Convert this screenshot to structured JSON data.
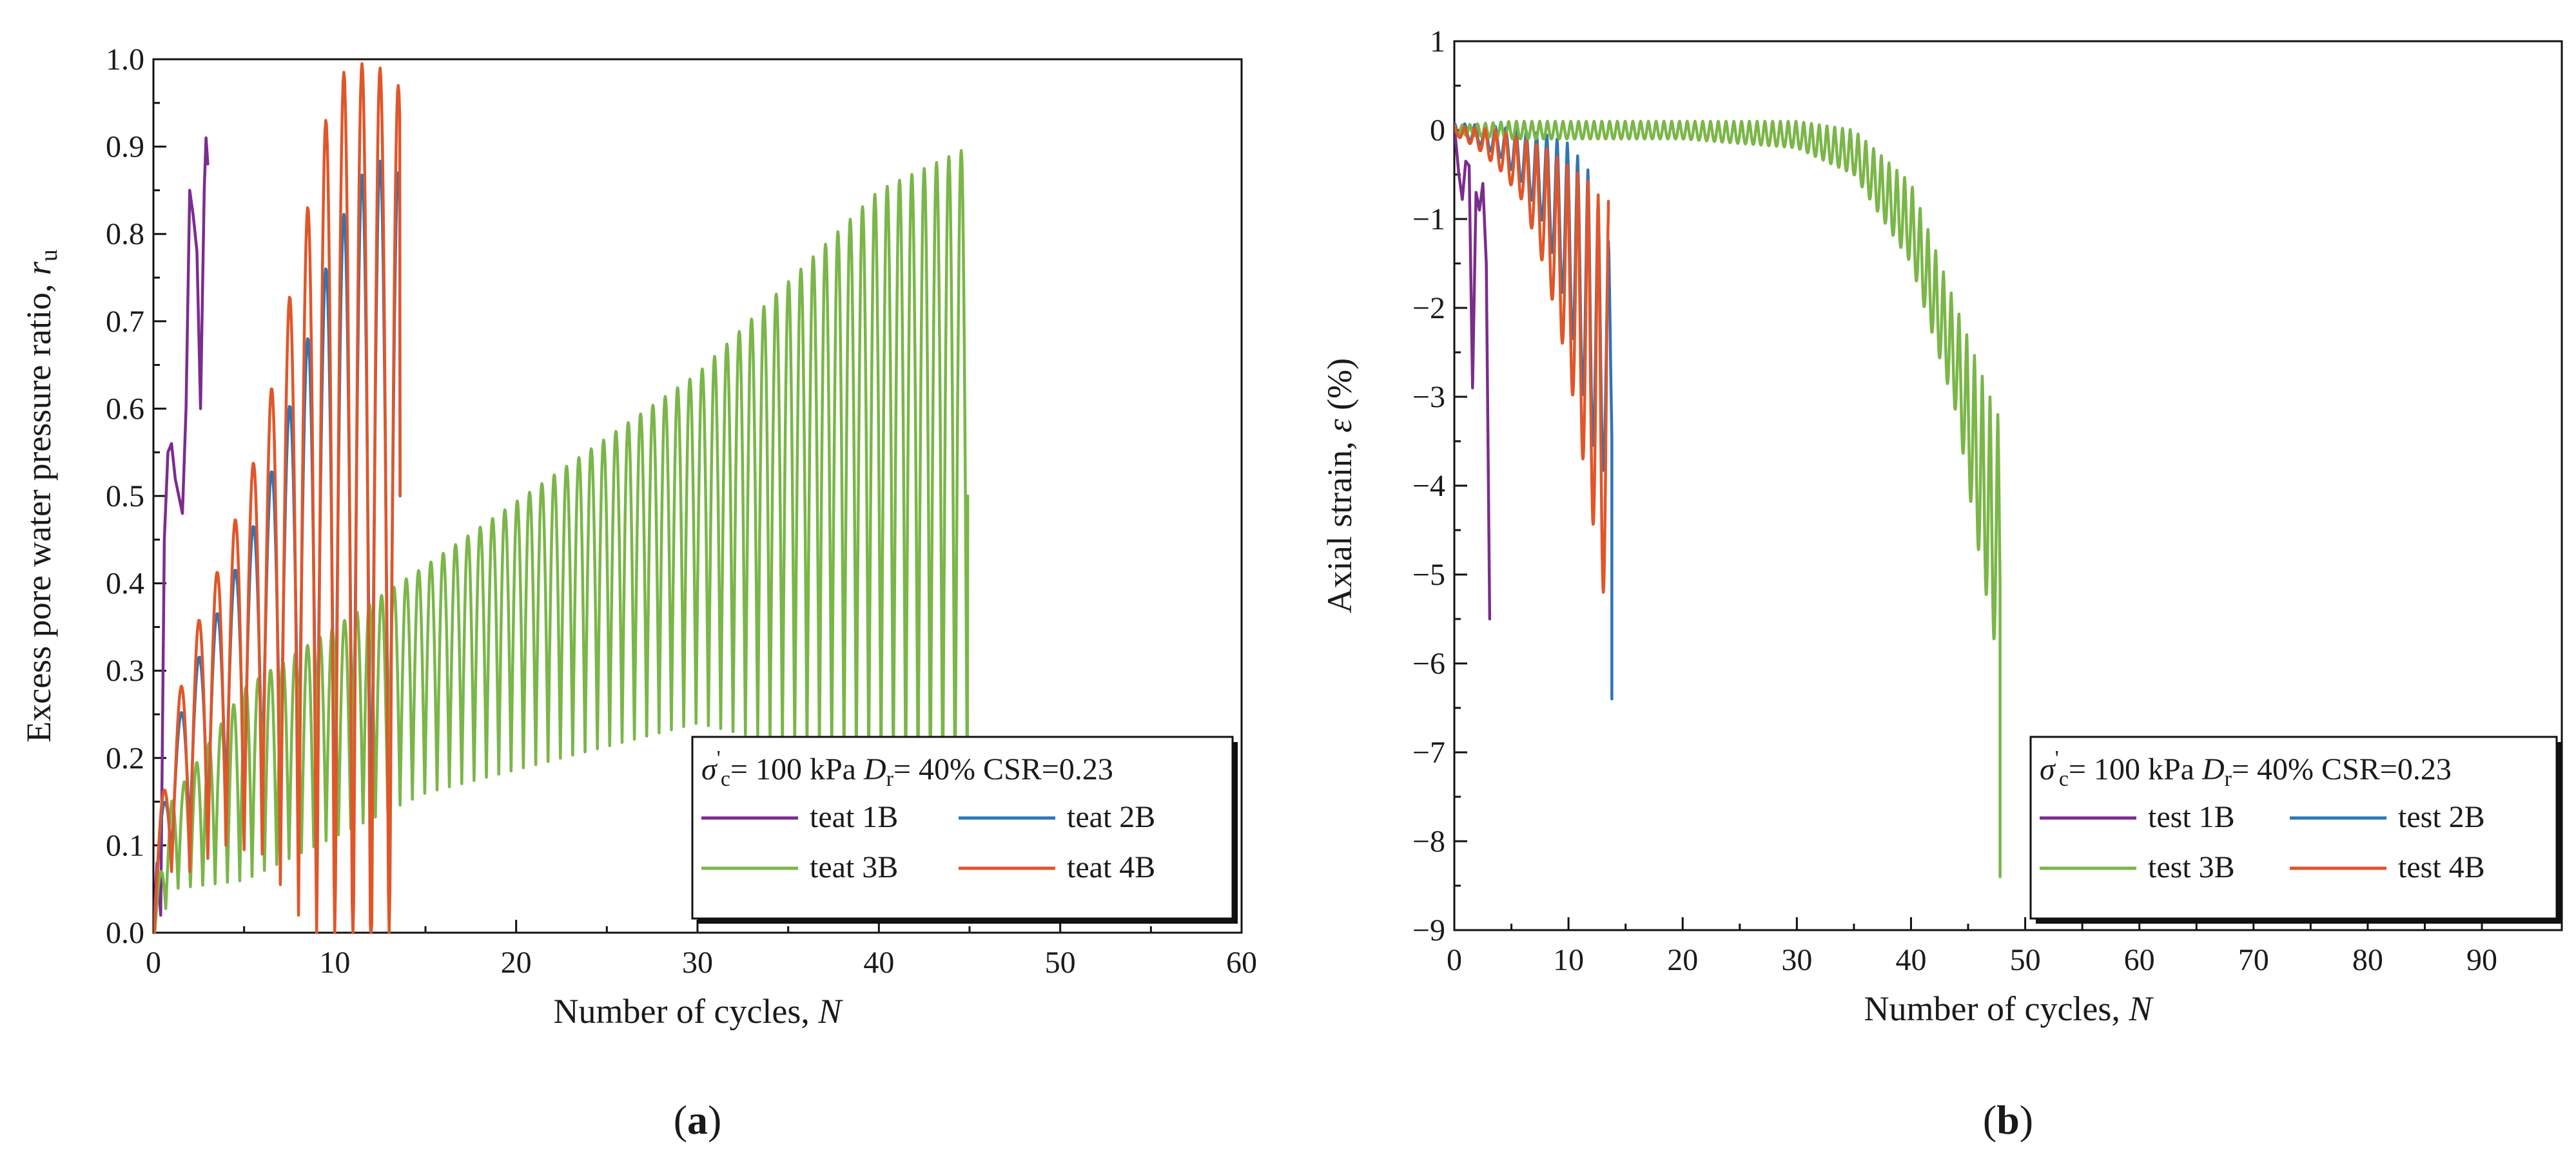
{
  "chart_data": [
    {
      "id": "a",
      "type": "line",
      "panel_label_open": "(",
      "panel_label": "a",
      "panel_label_close": ")",
      "xlabel": "Number of cycles,",
      "xlabel_var": "N",
      "ylabel": "Excess pore water pressure ratio,",
      "ylabel_var": "r",
      "ylabel_sub": "u",
      "xlim": [
        0,
        60
      ],
      "ylim": [
        0,
        1.0
      ],
      "xticks": [
        0,
        10,
        20,
        30,
        40,
        50,
        60
      ],
      "yticks": [
        0.0,
        0.1,
        0.2,
        0.3,
        0.4,
        0.5,
        0.6,
        0.7,
        0.8,
        0.9,
        1.0
      ],
      "ytick_labels": [
        "0.0",
        "0.1",
        "0.2",
        "0.3",
        "0.4",
        "0.5",
        "0.6",
        "0.7",
        "0.8",
        "0.9",
        "1.0"
      ],
      "legend_header": {
        "sigma": "σ",
        "sigma_sub": "c",
        "sigma_prime": "'",
        "sigma_rest": "= 100 kPa",
        "dr": "D",
        "dr_sub": "r",
        "dr_rest": "= 40%",
        "csr": "CSR=0.23"
      },
      "series": [
        {
          "name": "teat 1B",
          "color": "#7b2d8e",
          "x": [
            0,
            0.2,
            0.4,
            0.6,
            0.8,
            1.0,
            1.2,
            1.4,
            1.6,
            1.8,
            2.0,
            2.2,
            2.4,
            2.6,
            2.8,
            2.9,
            3.0
          ],
          "y": [
            0,
            0.08,
            0.02,
            0.45,
            0.55,
            0.56,
            0.52,
            0.5,
            0.48,
            0.6,
            0.85,
            0.82,
            0.78,
            0.6,
            0.85,
            0.91,
            0.88
          ]
        },
        {
          "name": "teat 2B",
          "color": "#2e75b6",
          "amp": [
            [
              0,
              0.04
            ],
            [
              1,
              0.06
            ],
            [
              2,
              0.09
            ],
            [
              4,
              0.12
            ],
            [
              6,
              0.16
            ],
            [
              8,
              0.24
            ],
            [
              10,
              0.35
            ],
            [
              12,
              0.43
            ],
            [
              13.5,
              0.42
            ]
          ],
          "base": [
            [
              0,
              0.03
            ],
            [
              1,
              0.15
            ],
            [
              2,
              0.2
            ],
            [
              4,
              0.27
            ],
            [
              6,
              0.33
            ],
            [
              8,
              0.4
            ],
            [
              10,
              0.45
            ],
            [
              12,
              0.46
            ],
            [
              13.5,
              0.45
            ]
          ],
          "period": 1.0,
          "x_end": 13.6,
          "end_value": 0.5
        },
        {
          "name": "teat 3B",
          "color": "#7ab648",
          "amp": [
            [
              0,
              0.02
            ],
            [
              1,
              0.05
            ],
            [
              5,
              0.11
            ],
            [
              15,
              0.13
            ],
            [
              30,
              0.2
            ],
            [
              40,
              0.33
            ],
            [
              45,
              0.38
            ]
          ],
          "base": [
            [
              0,
              0.0
            ],
            [
              1,
              0.1
            ],
            [
              5,
              0.17
            ],
            [
              15,
              0.29
            ],
            [
              30,
              0.44
            ],
            [
              40,
              0.52
            ],
            [
              45,
              0.52
            ]
          ],
          "period": 0.68,
          "x_end": 44.9,
          "end_value": 0.5
        },
        {
          "name": "teat 4B",
          "color": "#e0562a",
          "amp": [
            [
              0,
              0.05
            ],
            [
              1,
              0.08
            ],
            [
              2,
              0.13
            ],
            [
              4,
              0.17
            ],
            [
              6,
              0.24
            ],
            [
              8,
              0.38
            ],
            [
              10,
              0.53
            ],
            [
              11,
              0.55
            ],
            [
              12,
              0.57
            ],
            [
              13.5,
              0.52
            ]
          ],
          "base": [
            [
              0,
              0.03
            ],
            [
              1,
              0.15
            ],
            [
              2,
              0.2
            ],
            [
              4,
              0.27
            ],
            [
              6,
              0.33
            ],
            [
              8,
              0.4
            ],
            [
              10,
              0.45
            ],
            [
              12,
              0.43
            ],
            [
              13.5,
              0.45
            ]
          ],
          "period": 1.0,
          "x_end": 13.6,
          "end_value": 0.5
        }
      ]
    },
    {
      "id": "b",
      "type": "line",
      "panel_label_open": "(",
      "panel_label": "b",
      "panel_label_close": ")",
      "xlabel": "Number of cycles,",
      "xlabel_var": "N",
      "ylabel": "Axial strain,",
      "ylabel_var": "ε",
      "ylabel_unit": "(%)",
      "xlim": [
        0,
        97
      ],
      "ylim": [
        -9,
        1
      ],
      "xticks": [
        0,
        10,
        20,
        30,
        40,
        50,
        60,
        70,
        80,
        90
      ],
      "yticks": [
        1,
        0,
        -1,
        -2,
        -3,
        -4,
        -5,
        -6,
        -7,
        -8,
        -9
      ],
      "ytick_labels": [
        "1",
        "0",
        "−1",
        "−2",
        "−3",
        "−4",
        "−5",
        "−6",
        "−7",
        "−8",
        "−9"
      ],
      "legend_header": {
        "sigma": "σ",
        "sigma_sub": "c",
        "sigma_prime": "'",
        "sigma_rest": "= 100 kPa",
        "dr": "D",
        "dr_sub": "r",
        "dr_rest": "= 40%",
        "csr": "CSR=0.23"
      },
      "series": [
        {
          "name": "test 1B",
          "color": "#7b2d8e",
          "x": [
            0,
            0.4,
            0.7,
            1.0,
            1.3,
            1.6,
            1.9,
            2.2,
            2.5,
            2.8,
            3.1
          ],
          "y": [
            0.05,
            -0.5,
            -0.78,
            -0.35,
            -0.4,
            -2.9,
            -0.7,
            -0.9,
            -0.6,
            -1.5,
            -5.5
          ]
        },
        {
          "name": "test 2B",
          "color": "#2e75b6",
          "env": [
            [
              0,
              -0.05
            ],
            [
              2,
              -0.15
            ],
            [
              4,
              -0.3
            ],
            [
              6,
              -0.6
            ],
            [
              8,
              -1.1
            ],
            [
              10,
              -2.1
            ],
            [
              12,
              -3.5
            ],
            [
              13.6,
              -4.0
            ]
          ],
          "top": [
            [
              0,
              0.08
            ],
            [
              3,
              0.05
            ],
            [
              6,
              0.0
            ],
            [
              8,
              -0.05
            ],
            [
              10,
              -0.15
            ],
            [
              12,
              -0.5
            ],
            [
              13.6,
              -1.3
            ]
          ],
          "period": 0.9,
          "x_end": 13.8,
          "end_value": -6.4
        },
        {
          "name": "test 3B",
          "color": "#7ab648",
          "env": [
            [
              0,
              -0.05
            ],
            [
              5,
              -0.1
            ],
            [
              20,
              -0.1
            ],
            [
              30,
              -0.2
            ],
            [
              35,
              -0.5
            ],
            [
              40,
              -1.5
            ],
            [
              44,
              -3.2
            ],
            [
              46,
              -4.8
            ],
            [
              47.5,
              -5.9
            ]
          ],
          "top": [
            [
              0,
              0.05
            ],
            [
              5,
              0.1
            ],
            [
              30,
              0.1
            ],
            [
              35,
              0.0
            ],
            [
              40,
              -0.6
            ],
            [
              44,
              -2.0
            ],
            [
              47.5,
              -3.2
            ]
          ],
          "period": 0.68,
          "x_end": 47.8,
          "end_value": -8.4
        },
        {
          "name": "test 4B",
          "color": "#e0562a",
          "env": [
            [
              0,
              -0.05
            ],
            [
              2,
              -0.2
            ],
            [
              4,
              -0.45
            ],
            [
              6,
              -0.8
            ],
            [
              8,
              -1.6
            ],
            [
              10,
              -2.7
            ],
            [
              12,
              -4.3
            ],
            [
              13,
              -5.2
            ]
          ],
          "top": [
            [
              0,
              0.05
            ],
            [
              4,
              0.0
            ],
            [
              8,
              -0.2
            ],
            [
              10,
              -0.4
            ],
            [
              12,
              -0.6
            ],
            [
              13.4,
              -0.9
            ]
          ],
          "period": 0.9,
          "x_end": 13.5,
          "end_value": -0.8
        }
      ]
    }
  ]
}
